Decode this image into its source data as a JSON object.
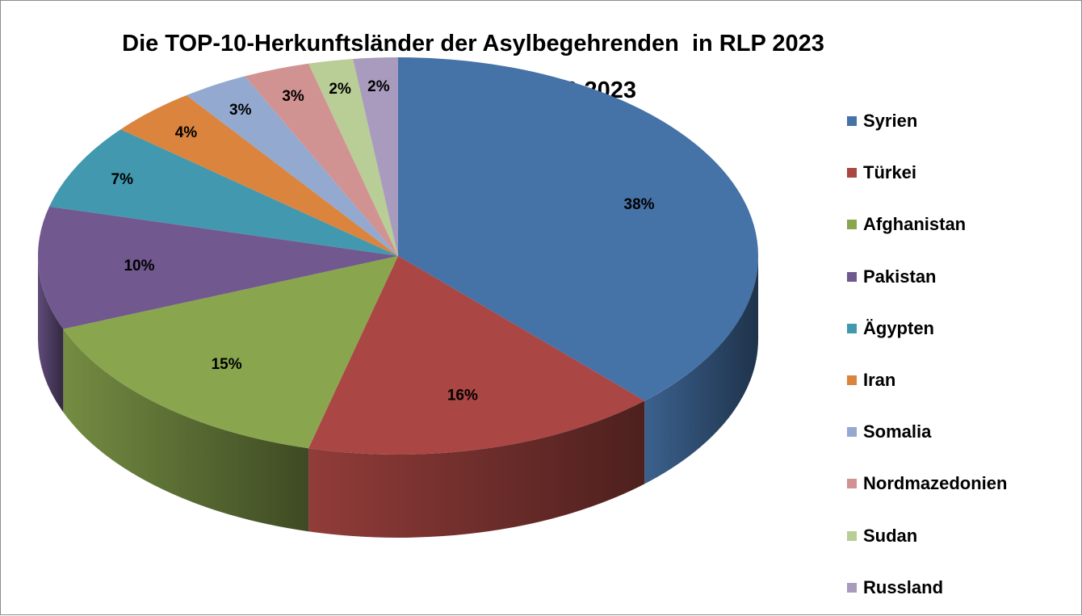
{
  "chart_data": {
    "type": "pie",
    "title": "Die TOP-10-Herkunftsländer der Asylbegehrenden  in RLP 2023",
    "subtitle": "01.01.2023  - 30.09.2023",
    "categories": [
      "Syrien",
      "Türkei",
      "Afghanistan",
      "Pakistan",
      "Ägypten",
      "Iran",
      "Somalia",
      "Nordmazedonien",
      "Sudan",
      "Russland"
    ],
    "values": [
      38,
      16,
      15,
      10,
      7,
      4,
      3,
      3,
      2,
      2
    ],
    "labels": [
      "38%",
      "16%",
      "15%",
      "10%",
      "7%",
      "4%",
      "3%",
      "3%",
      "2%",
      "2%"
    ],
    "colors": [
      "#4572A7",
      "#AA4643",
      "#89A54E",
      "#71588F",
      "#4198AF",
      "#DB843D",
      "#93A9CF",
      "#D19392",
      "#B9CD96",
      "#A99BBD"
    ],
    "legend_position": "right",
    "style": "3d"
  }
}
